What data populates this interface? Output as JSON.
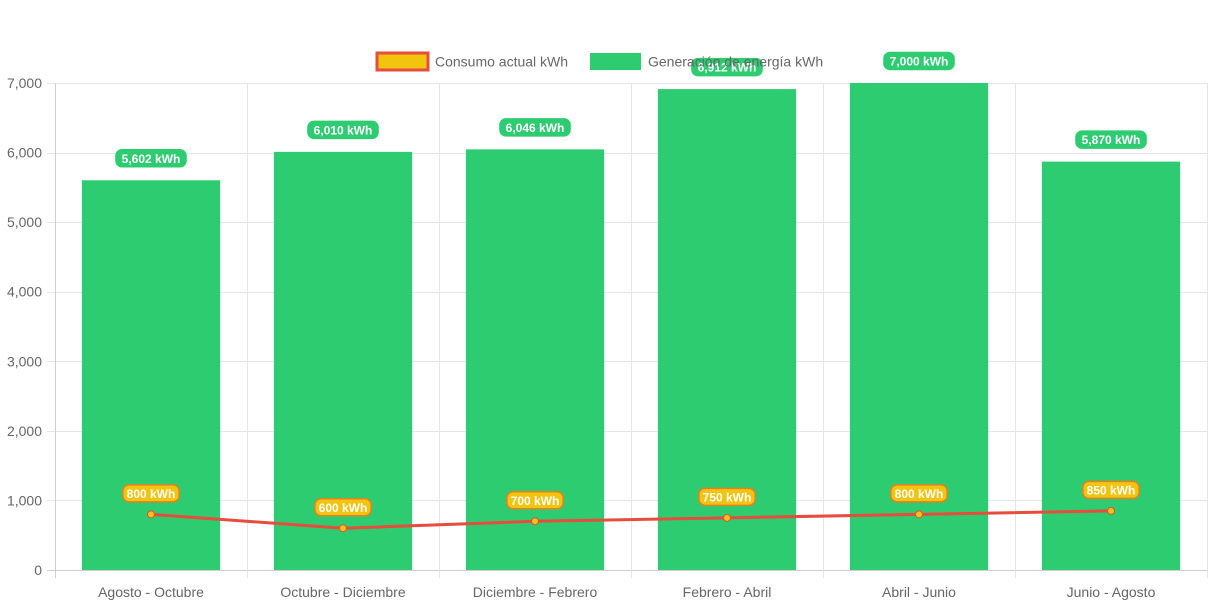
{
  "chart_data": {
    "type": "bar",
    "categories": [
      "Agosto - Octubre",
      "Octubre - Diciembre",
      "Diciembre - Febrero",
      "Febrero - Abril",
      "Abril - Junio",
      "Junio - Agosto"
    ],
    "series": [
      {
        "name": "Consumo actual kWh",
        "type": "line",
        "values": [
          800,
          600,
          700,
          750,
          800,
          850
        ],
        "labels": [
          "800 kWh",
          "600 kWh",
          "700 kWh",
          "750 kWh",
          "800 kWh",
          "850 kWh"
        ],
        "line_color": "#e74c3c",
        "point_color": "#f1c40f",
        "label_bg": "#f1c40f",
        "label_border": "#e67e22"
      },
      {
        "name": "Generación de energía kWh",
        "type": "bar",
        "values": [
          5602,
          6010,
          6046,
          6912,
          7000,
          5870
        ],
        "labels": [
          "5,602 kWh",
          "6,010 kWh",
          "6,046 kWh",
          "6,912 kWh",
          "7,000 kWh",
          "5,870 kWh"
        ],
        "color": "#2ecc71",
        "label_bg": "#2ecc71"
      }
    ],
    "yticks": [
      "0",
      "1,000",
      "2,000",
      "3,000",
      "4,000",
      "5,000",
      "6,000",
      "7,000"
    ],
    "ylim": [
      0,
      7000
    ],
    "grid": true,
    "legend_position": "top"
  }
}
